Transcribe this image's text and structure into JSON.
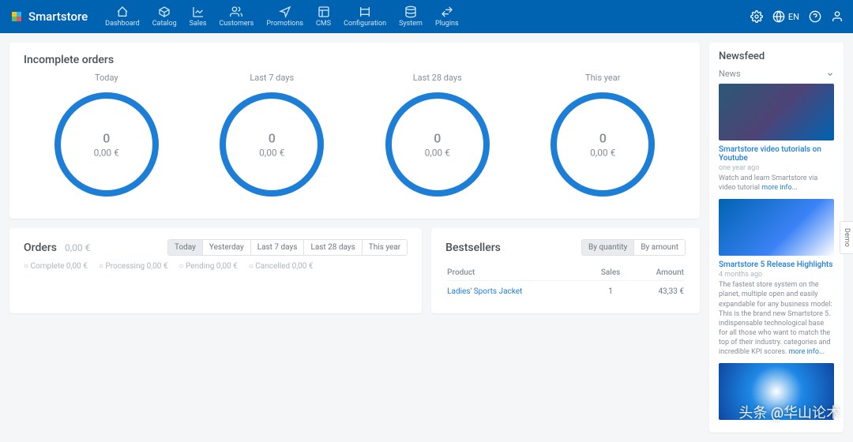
{
  "brand": {
    "name": "Smartstore"
  },
  "nav": [
    {
      "label": "Dashboard"
    },
    {
      "label": "Catalog"
    },
    {
      "label": "Sales"
    },
    {
      "label": "Customers"
    },
    {
      "label": "Promotions"
    },
    {
      "label": "CMS"
    },
    {
      "label": "Configuration"
    },
    {
      "label": "System"
    },
    {
      "label": "Plugins"
    }
  ],
  "lang": "EN",
  "incomplete": {
    "title": "Incomplete orders",
    "ring_stroke": "#1c7ed6",
    "ring_track": "#e9ecef",
    "ring_width": 8,
    "ring_radius": 62,
    "fill_ratio": 1.0,
    "items": [
      {
        "label": "Today",
        "count": "0",
        "amount": "0,00 €"
      },
      {
        "label": "Last 7 days",
        "count": "0",
        "amount": "0,00 €"
      },
      {
        "label": "Last 28 days",
        "count": "0",
        "amount": "0,00 €"
      },
      {
        "label": "This year",
        "count": "0",
        "amount": "0,00 €"
      }
    ]
  },
  "orders": {
    "title": "Orders",
    "amount": "0,00 €",
    "tabs": [
      "Today",
      "Yesterday",
      "Last 7 days",
      "Last 28 days",
      "This year"
    ],
    "active_tab": 0,
    "statuses": [
      "Complete 0,00 €",
      "Processing 0,00 €",
      "Pending 0,00 €",
      "Cancelled 0,00 €"
    ]
  },
  "bestsellers": {
    "title": "Bestsellers",
    "tabs": [
      "By quantity",
      "By amount"
    ],
    "active_tab": 0,
    "columns": [
      "Product",
      "Sales",
      "Amount"
    ],
    "rows": [
      {
        "product": "Ladies' Sports Jacket",
        "sales": "1",
        "amount": "43,33 €"
      }
    ]
  },
  "newsfeed": {
    "title": "Newsfeed",
    "select": "News",
    "items": [
      {
        "thumb_gradient": "linear-gradient(135deg,#2b5876 0%,#4e4376 50%,#0063b1 100%)",
        "title": "Smartstore video tutorials on Youtube",
        "meta": "one year ago",
        "desc": "Watch and learn Smartstore via video tutorial ",
        "more": "more info..."
      },
      {
        "thumb_gradient": "linear-gradient(135deg,#0063b1 0%,#3b82f6 60%,#ffffff 100%)",
        "title": "Smartstore 5 Release Highlights",
        "meta": "4 months ago",
        "desc": "The fastest store system on the planet, multiple open and easily expandable for any business model: This is the brand new Smartstore 5. indispensable technological base for all those who want to match the top of their industry. categories and incredible KPI scores. ",
        "more": "more info..."
      }
    ],
    "footer_thumb": "radial-gradient(circle at 50% 50%,#ffffff 0%,#1e88e5 40%,#0d47a1 100%)"
  },
  "demo_label": "Demo",
  "watermark": "头条 @华山论术"
}
